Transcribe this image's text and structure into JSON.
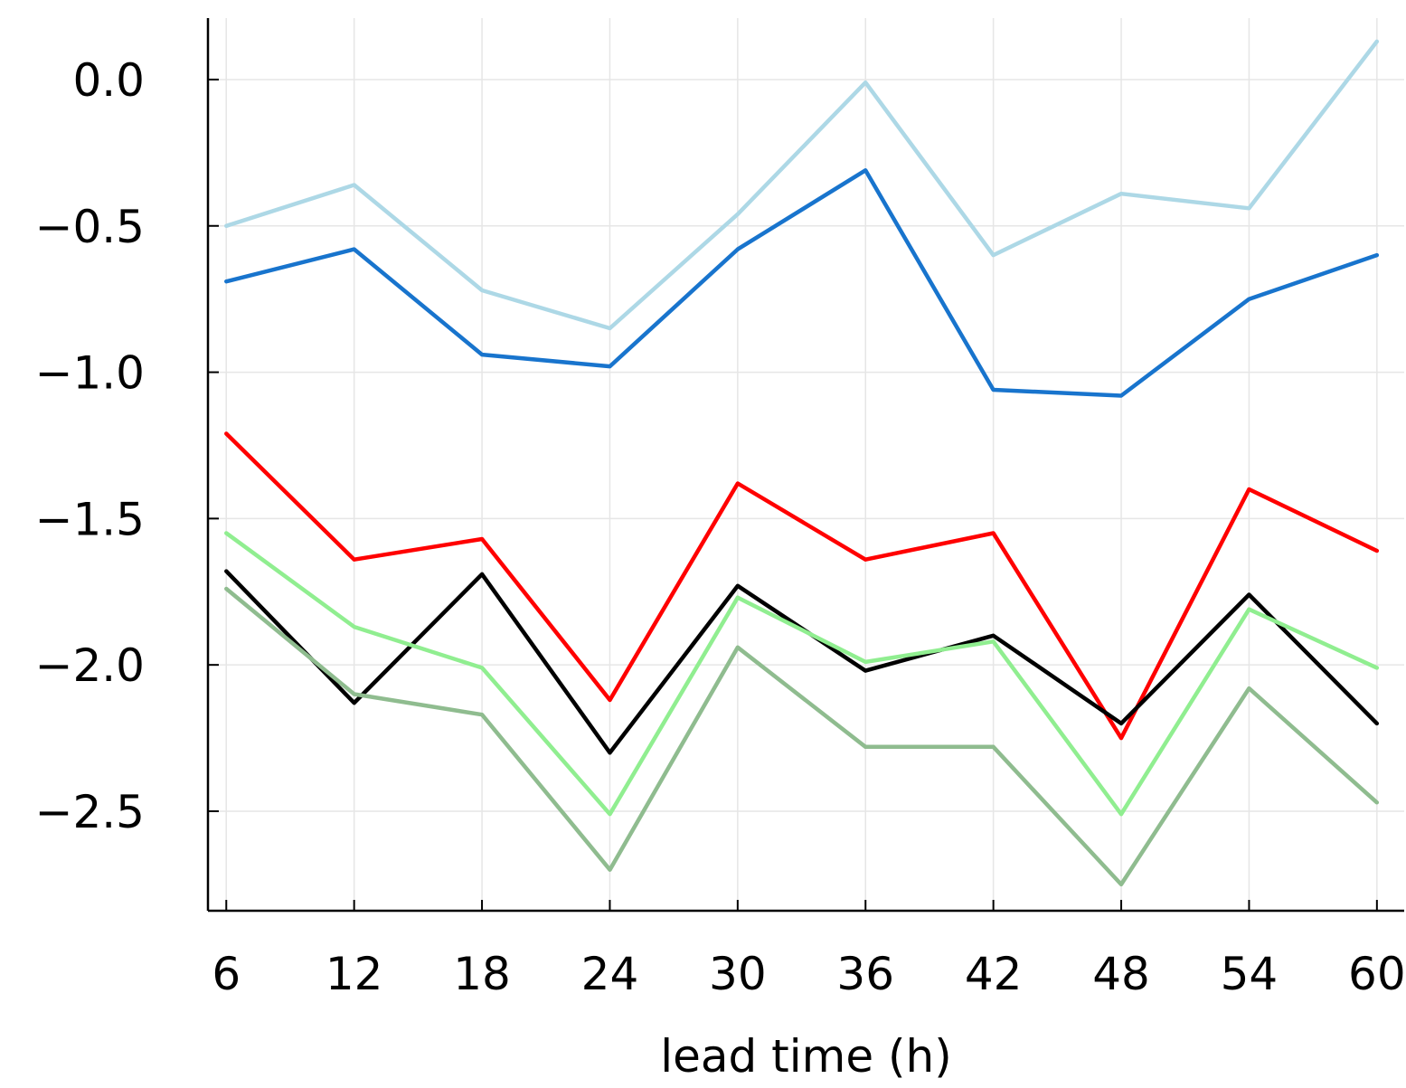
{
  "chart_data": {
    "type": "line",
    "title": "",
    "xlabel": "lead time (h)",
    "ylabel": "",
    "x": [
      6,
      12,
      18,
      24,
      30,
      36,
      42,
      48,
      54,
      60
    ],
    "x_tick_labels": [
      "6",
      "12",
      "18",
      "24",
      "30",
      "36",
      "42",
      "48",
      "54",
      "60"
    ],
    "y_ticks": [
      0.0,
      -0.5,
      -1.0,
      -1.5,
      -2.0,
      -2.5
    ],
    "y_tick_labels": [
      "0.0",
      "−0.5",
      "−1.0",
      "−1.5",
      "−2.0",
      "−2.5"
    ],
    "xlim": [
      5.14,
      61.28
    ],
    "ylim": [
      -2.84,
      0.21
    ],
    "grid": true,
    "legend": "none",
    "series": [
      {
        "color": "#add8e6",
        "values": [
          -0.5,
          -0.36,
          -0.72,
          -0.85,
          -0.46,
          -0.01,
          -0.6,
          -0.39,
          -0.44,
          0.13
        ]
      },
      {
        "color": "#1874cd",
        "values": [
          -0.69,
          -0.58,
          -0.94,
          -0.98,
          -0.58,
          -0.31,
          -1.06,
          -1.08,
          -0.75,
          -0.6
        ]
      },
      {
        "color": "#ff0000",
        "values": [
          -1.21,
          -1.64,
          -1.57,
          -2.12,
          -1.38,
          -1.64,
          -1.55,
          -2.25,
          -1.4,
          -1.61
        ]
      },
      {
        "color": "#000000",
        "values": [
          -1.68,
          -2.13,
          -1.69,
          -2.3,
          -1.73,
          -2.02,
          -1.9,
          -2.2,
          -1.76,
          -2.2
        ]
      },
      {
        "color": "#90ee90",
        "values": [
          -1.55,
          -1.87,
          -2.01,
          -2.51,
          -1.77,
          -1.99,
          -1.92,
          -2.51,
          -1.81,
          -2.01
        ]
      },
      {
        "color": "#8fbc8f",
        "values": [
          -1.74,
          -2.1,
          -2.17,
          -2.7,
          -1.94,
          -2.28,
          -2.28,
          -2.75,
          -2.08,
          -2.47
        ]
      }
    ]
  }
}
